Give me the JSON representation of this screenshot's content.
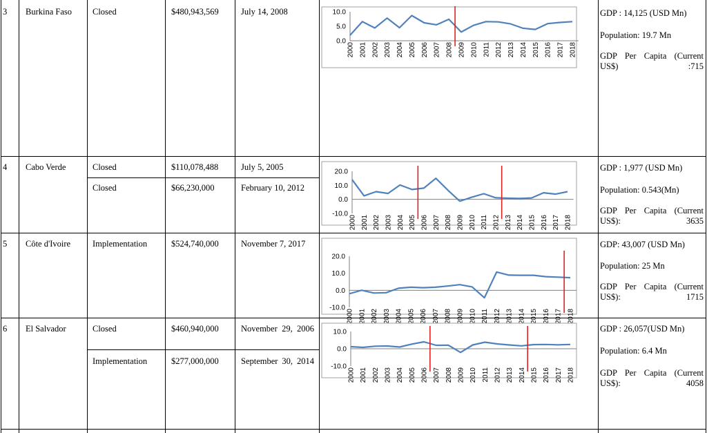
{
  "rows": [
    {
      "num": "3",
      "country": "Burkina Faso",
      "entries": [
        {
          "status": "Closed",
          "amount": "$480,943,569",
          "date": "July 14, 2008"
        }
      ],
      "chart_data": {
        "type": "line",
        "x": [
          "2000",
          "2001",
          "2002",
          "2003",
          "2004",
          "2005",
          "2006",
          "2007",
          "2008",
          "2009",
          "2010",
          "2011",
          "2012",
          "2013",
          "2014",
          "2015",
          "2016",
          "2017",
          "2018"
        ],
        "values": [
          1.9,
          6.6,
          4.4,
          7.8,
          4.5,
          8.7,
          6.2,
          5.5,
          7.4,
          3.0,
          5.3,
          6.6,
          6.5,
          5.8,
          4.3,
          3.9,
          5.9,
          6.3,
          6.6
        ],
        "ylim": [
          0,
          10
        ],
        "yticks": [
          "10.0",
          "5.0",
          "0.0"
        ],
        "markers": [
          "2008"
        ],
        "line_color": "#4f81bd",
        "marker_color": "#e02020"
      },
      "info": {
        "gdp": "GDP : 14,125 (USD Mn)",
        "population": "Population: 19.7 Mn",
        "per_capita": "GDP Per Capita (Current US$) :715"
      }
    },
    {
      "num": "4",
      "country": "Cabo Verde",
      "entries": [
        {
          "status": "Closed",
          "amount": "$110,078,488",
          "date": "July 5, 2005"
        },
        {
          "status": "Closed",
          "amount": "$66,230,000",
          "date": "February 10, 2012"
        }
      ],
      "chart_data": {
        "type": "line",
        "x": [
          "2000",
          "2001",
          "2002",
          "2003",
          "2004",
          "2005",
          "2006",
          "2007",
          "2008",
          "2009",
          "2010",
          "2011",
          "2012",
          "2013",
          "2014",
          "2015",
          "2016",
          "2017",
          "2018"
        ],
        "values": [
          14.0,
          2.5,
          5.5,
          4.2,
          10.2,
          7.0,
          8.0,
          15.0,
          6.5,
          -1.3,
          1.5,
          4.0,
          1.1,
          0.8,
          0.6,
          1.0,
          4.7,
          3.7,
          5.5
        ],
        "ylim": [
          -10,
          20
        ],
        "yticks": [
          "20.0",
          "10.0",
          "0.0",
          "-10.0"
        ],
        "markers": [
          "2005",
          "2012"
        ],
        "line_color": "#4f81bd",
        "marker_color": "#e02020"
      },
      "info": {
        "gdp": "GDP : 1,977 (USD Mn)",
        "population": "Population: 0.543(Mn)",
        "per_capita": "GDP Per Capita (Current US$): 3635"
      }
    },
    {
      "num": "5",
      "country": "Côte d'Ivoire",
      "entries": [
        {
          "status": "Implementation",
          "amount": "$524,740,000",
          "date": "November 7, 2017"
        }
      ],
      "chart_data": {
        "type": "line",
        "x": [
          "2000",
          "2001",
          "2002",
          "2003",
          "2004",
          "2005",
          "2006",
          "2007",
          "2008",
          "2009",
          "2010",
          "2011",
          "2012",
          "2013",
          "2014",
          "2015",
          "2016",
          "2017",
          "2018"
        ],
        "values": [
          -2.0,
          0.0,
          -1.6,
          -1.4,
          1.2,
          1.8,
          1.5,
          1.8,
          2.5,
          3.3,
          2.0,
          -4.4,
          10.7,
          8.9,
          8.8,
          8.8,
          8.0,
          7.7,
          7.4
        ],
        "ylim": [
          -10,
          20
        ],
        "yticks": [
          "20.0",
          "10.0",
          "0.0",
          "-10.0"
        ],
        "markers": [
          "2017"
        ],
        "line_color": "#4f81bd",
        "marker_color": "#e02020"
      },
      "info": {
        "gdp": "GDP: 43,007 (USD Mn)",
        "population": "Population: 25 Mn",
        "per_capita": "GDP Per Capita (Current US$): 1715"
      }
    },
    {
      "num": "6",
      "country": "El Salvador",
      "entries": [
        {
          "status": "Closed",
          "amount": "$460,940,000",
          "date": "November 29, 2006"
        },
        {
          "status": "Implementation",
          "amount": "$277,000,000",
          "date": "September 30, 2014"
        }
      ],
      "chart_data": {
        "type": "line",
        "x": [
          "2000",
          "2001",
          "2002",
          "2003",
          "2004",
          "2005",
          "2006",
          "2007",
          "2008",
          "2009",
          "2010",
          "2011",
          "2012",
          "2013",
          "2014",
          "2015",
          "2016",
          "2017",
          "2018"
        ],
        "values": [
          1.2,
          0.8,
          1.5,
          1.6,
          1.0,
          2.7,
          4.0,
          2.0,
          2.1,
          -2.1,
          2.2,
          3.8,
          2.8,
          2.2,
          1.7,
          2.4,
          2.5,
          2.3,
          2.5
        ],
        "ylim": [
          -10,
          10
        ],
        "yticks": [
          "10.0",
          "0.0",
          "-10.0"
        ],
        "markers": [
          "2006",
          "2014"
        ],
        "line_color": "#4f81bd",
        "marker_color": "#e02020"
      },
      "info": {
        "gdp": "GDP : 26,057(USD Mn)",
        "population": "Population: 6.4 Mn",
        "per_capita": "GDP Per Capita (Current US$): 4058"
      }
    }
  ]
}
